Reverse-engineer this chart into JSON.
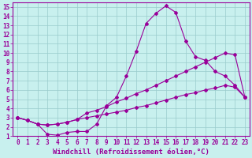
{
  "xlabel": "Windchill (Refroidissement éolien,°C)",
  "bg_color": "#c8f0ee",
  "grid_color": "#99cccc",
  "line_color": "#990099",
  "xlim": [
    -0.5,
    23.5
  ],
  "ylim": [
    1,
    15.5
  ],
  "xticks": [
    0,
    1,
    2,
    3,
    4,
    5,
    6,
    7,
    8,
    9,
    10,
    11,
    12,
    13,
    14,
    15,
    16,
    17,
    18,
    19,
    20,
    21,
    22,
    23
  ],
  "yticks": [
    1,
    2,
    3,
    4,
    5,
    6,
    7,
    8,
    9,
    10,
    11,
    12,
    13,
    14,
    15
  ],
  "tick_fontsize": 5.5,
  "label_fontsize": 6.5,
  "line1_x": [
    0,
    1,
    2,
    3,
    4,
    5,
    6,
    7,
    8,
    9,
    10,
    11,
    12,
    13,
    14,
    15,
    16,
    17,
    18,
    19,
    20,
    21,
    22,
    23
  ],
  "line1_y": [
    3.0,
    2.7,
    2.3,
    1.2,
    1.1,
    1.4,
    1.5,
    1.5,
    2.3,
    4.3,
    5.2,
    7.5,
    10.2,
    13.2,
    14.3,
    15.1,
    14.4,
    11.3,
    9.6,
    9.2,
    8.0,
    7.5,
    6.5,
    5.2
  ],
  "line2_x": [
    0,
    1,
    2,
    3,
    4,
    5,
    6,
    7,
    8,
    9,
    10,
    11,
    12,
    13,
    14,
    15,
    16,
    17,
    18,
    19,
    20,
    21,
    22,
    23
  ],
  "line2_y": [
    3.0,
    2.7,
    2.3,
    2.2,
    2.3,
    2.5,
    2.8,
    3.5,
    3.8,
    4.2,
    4.7,
    5.1,
    5.6,
    6.0,
    6.5,
    7.0,
    7.5,
    8.0,
    8.5,
    9.0,
    9.5,
    10.0,
    9.8,
    5.2
  ],
  "line3_x": [
    0,
    1,
    2,
    3,
    4,
    5,
    6,
    7,
    8,
    9,
    10,
    11,
    12,
    13,
    14,
    15,
    16,
    17,
    18,
    19,
    20,
    21,
    22,
    23
  ],
  "line3_y": [
    3.0,
    2.7,
    2.3,
    2.2,
    2.3,
    2.5,
    2.8,
    3.0,
    3.2,
    3.4,
    3.6,
    3.8,
    4.1,
    4.3,
    4.6,
    4.9,
    5.2,
    5.5,
    5.7,
    6.0,
    6.2,
    6.5,
    6.3,
    5.2
  ]
}
